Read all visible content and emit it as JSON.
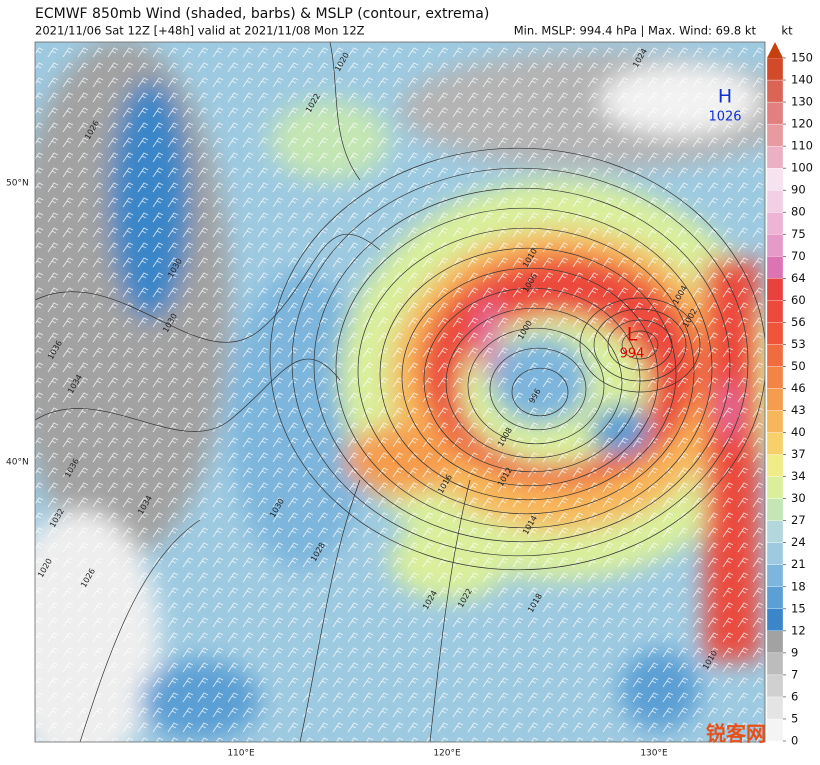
{
  "header": {
    "title": "ECMWF 850mb Wind (shaded, barbs) & MSLP (contour, extrema)",
    "subtitle": "2021/11/06 Sat 12Z [+48h] valid at 2021/11/08 Mon 12Z",
    "stats": "Min. MSLP: 994.4 hPa | Max. Wind: 69.8 kt"
  },
  "map": {
    "lat_labels": [
      "50°N",
      "40°N"
    ],
    "lon_labels": [
      "110°E",
      "120°E",
      "130°E"
    ],
    "high": {
      "symbol": "H",
      "value": "1026"
    },
    "low": {
      "symbol": "L",
      "value": "994"
    },
    "contour_labels": [
      "1020",
      "1022",
      "1026",
      "1030",
      "1030",
      "1036",
      "1034",
      "1036",
      "1034",
      "1032",
      "1020",
      "1026",
      "1010",
      "1006",
      "1000",
      "996",
      "1008",
      "1012",
      "1016",
      "1014",
      "1018",
      "1022",
      "1024",
      "1028",
      "1030",
      "1004",
      "1002",
      "1010",
      "1024"
    ]
  },
  "colorbar": {
    "unit": "kt",
    "ticks": [
      0,
      5,
      6,
      7,
      9,
      12,
      15,
      18,
      21,
      24,
      27,
      30,
      34,
      37,
      40,
      43,
      46,
      50,
      53,
      56,
      60,
      64,
      70,
      75,
      80,
      90,
      100,
      110,
      120,
      130,
      140,
      150
    ],
    "colors": [
      "#f4f4f4",
      "#e4e4e4",
      "#d0d0d0",
      "#bcbcbc",
      "#a2a2a2",
      "#3a86c8",
      "#5c9fd4",
      "#7db5dc",
      "#9ecae1",
      "#b2d7dc",
      "#c4e6b4",
      "#d9ef9c",
      "#f0ec86",
      "#f7d06a",
      "#f8b65a",
      "#f69c4e",
      "#f38445",
      "#f06c3f",
      "#ee553b",
      "#ec4a3c",
      "#e8423e",
      "#dc74b4",
      "#e59ac8",
      "#edb4d6",
      "#f3cfe5",
      "#f7e3ef",
      "#ecb0c4",
      "#e79aa0",
      "#e28080",
      "#dc6454",
      "#d24a2a"
    ],
    "extend_color": "#c8400f"
  },
  "watermark": "锐客网"
}
